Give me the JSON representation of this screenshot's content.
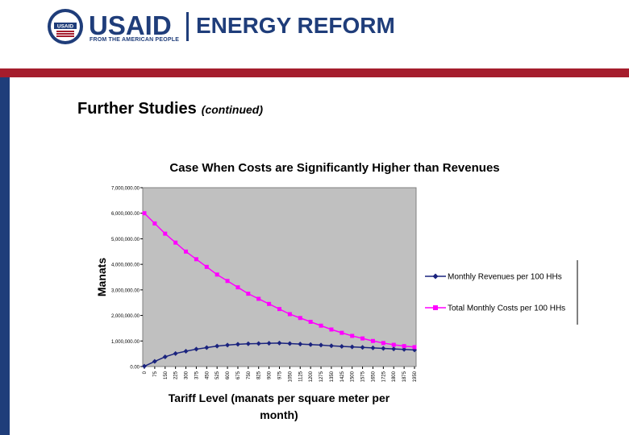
{
  "header": {
    "brand": "USAID",
    "tagline": "FROM THE AMERICAN PEOPLE",
    "program": "ENERGY REFORM",
    "seal_text": "USAID"
  },
  "slide": {
    "title": "Further Studies",
    "subtitle": "(continued)"
  },
  "colors": {
    "navy": "#1f3d7a",
    "red": "#a51d2d",
    "revenue": "#1a237e",
    "cost": "#ff00ff",
    "plot_bg": "#c0c0c0"
  },
  "chart_data": {
    "type": "line",
    "title": "Case When Costs are Significantly Higher than Revenues",
    "ylabel": "Manats",
    "xlabel_line1": "Tariff Level (manats per square meter per",
    "xlabel_line2": "month)",
    "ylim": [
      0,
      7000000
    ],
    "y_ticks": [
      {
        "v": 0,
        "label": "0.00"
      },
      {
        "v": 1000000,
        "label": "1,000,000.00"
      },
      {
        "v": 2000000,
        "label": "2,000,000.00"
      },
      {
        "v": 3000000,
        "label": "3,000,000.00"
      },
      {
        "v": 4000000,
        "label": "4,000,000.00"
      },
      {
        "v": 5000000,
        "label": "5,000,000.00"
      },
      {
        "v": 6000000,
        "label": "6,000,000.00"
      },
      {
        "v": 7000000,
        "label": "7,000,000.00"
      }
    ],
    "x_ticks": [
      "0",
      "75",
      "150",
      "225",
      "300",
      "375",
      "450",
      "525",
      "600",
      "675",
      "750",
      "825",
      "900",
      "975",
      "1050",
      "1125",
      "1200",
      "1275",
      "1350",
      "1425",
      "1500",
      "1575",
      "1650",
      "1725",
      "1800",
      "1875",
      "1950"
    ],
    "x": [
      0,
      75,
      150,
      225,
      300,
      375,
      450,
      525,
      600,
      675,
      750,
      825,
      900,
      975,
      1050,
      1125,
      1200,
      1275,
      1350,
      1425,
      1500,
      1575,
      1650,
      1725,
      1800,
      1875,
      1950
    ],
    "series": [
      {
        "name": "Monthly Revenues per 100 HHs",
        "marker": "diamond",
        "values": [
          10000,
          200000,
          380000,
          510000,
          600000,
          680000,
          740000,
          800000,
          840000,
          870000,
          890000,
          900000,
          910000,
          920000,
          900000,
          880000,
          860000,
          840000,
          810000,
          790000,
          770000,
          750000,
          730000,
          710000,
          690000,
          670000,
          650000
        ]
      },
      {
        "name": "Total Monthly Costs per 100 HHs",
        "marker": "square",
        "values": [
          6000000,
          5600000,
          5200000,
          4850000,
          4500000,
          4200000,
          3900000,
          3600000,
          3350000,
          3100000,
          2850000,
          2650000,
          2450000,
          2250000,
          2050000,
          1900000,
          1750000,
          1600000,
          1450000,
          1320000,
          1200000,
          1100000,
          1000000,
          920000,
          850000,
          800000,
          760000
        ]
      }
    ]
  }
}
